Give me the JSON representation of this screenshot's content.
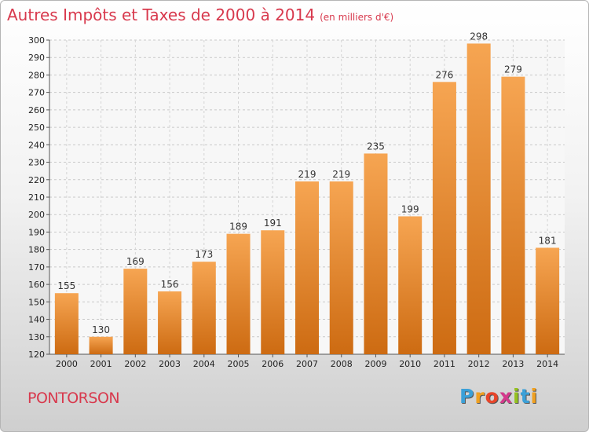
{
  "title": "Autres Impôts et Taxes de 2000 à 2014",
  "subtitle": "(en milliers d'€)",
  "location": "PONTORSON",
  "brand": {
    "letters": [
      "P",
      "r",
      "o",
      "x",
      "i",
      "t",
      "i"
    ],
    "colors": [
      "#3aa0d8",
      "#f0a020",
      "#e8452a",
      "#d43a8c",
      "#94c11f",
      "#3aa0d8",
      "#f0a020"
    ]
  },
  "colors": {
    "bar_top": "#f6a552",
    "bar_bottom": "#cd6b12",
    "title": "#d8394d"
  },
  "chart_data": {
    "type": "bar",
    "categories": [
      "2000",
      "2001",
      "2002",
      "2003",
      "2004",
      "2005",
      "2006",
      "2007",
      "2008",
      "2009",
      "2010",
      "2011",
      "2012",
      "2013",
      "2014"
    ],
    "values": [
      155,
      130,
      169,
      156,
      173,
      189,
      191,
      219,
      219,
      235,
      199,
      276,
      298,
      279,
      181
    ],
    "ylim": [
      120,
      300
    ],
    "yticks": [
      120,
      130,
      140,
      150,
      160,
      170,
      180,
      190,
      200,
      210,
      220,
      230,
      240,
      250,
      260,
      270,
      280,
      290,
      300
    ],
    "grid": true
  }
}
